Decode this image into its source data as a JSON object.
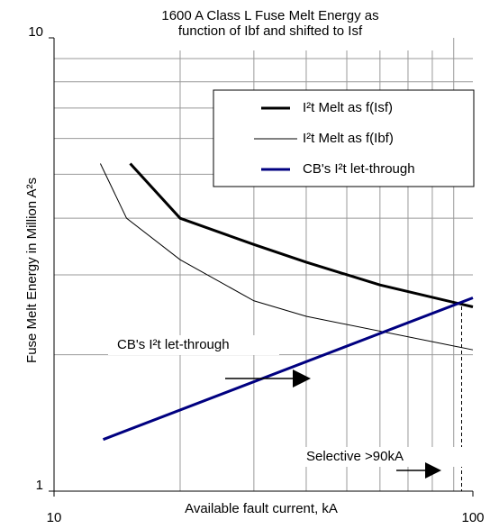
{
  "chart_data": {
    "type": "line",
    "title": [
      "1600 A Class L Fuse Melt Energy as",
      "function of Ibf and shifted to Isf"
    ],
    "x_label": "Available fault current, kA",
    "y_label": "Fuse Melt Energy in Million A²s",
    "log_x": true,
    "log_y": true,
    "xlim": [
      10,
      100
    ],
    "ylim": [
      1,
      10
    ],
    "xticks": [
      10,
      100
    ],
    "yticks": [
      1,
      10
    ],
    "xgrid": [
      20,
      30,
      40,
      50,
      60,
      70,
      80,
      90
    ],
    "ygrid": [
      2,
      3,
      4,
      5,
      6,
      7,
      8,
      9
    ],
    "legend": "upper right",
    "series": [
      {
        "name": "I²t Melt as f(Isf)",
        "color": "#000000",
        "line_width": 3,
        "x": [
          15.2,
          20,
          30,
          40,
          60,
          100
        ],
        "values": [
          5.28,
          4.0,
          3.5,
          3.2,
          2.85,
          2.55
        ]
      },
      {
        "name": "I²t Melt as f(Ibf)",
        "color": "#000000",
        "line_width": 1,
        "x": [
          12.9,
          14.9,
          20,
          30,
          40,
          100
        ],
        "values": [
          5.28,
          4.0,
          3.24,
          2.63,
          2.43,
          2.05
        ]
      },
      {
        "name": "CB's I²t let-through",
        "color": "#000080",
        "line_width": 3,
        "x": [
          13.1,
          100
        ],
        "values": [
          1.3,
          2.67
        ]
      }
    ],
    "annotations": [
      {
        "text": "CB's I²t let-through"
      },
      {
        "text": "Selective >90kA",
        "x": 94
      }
    ]
  }
}
